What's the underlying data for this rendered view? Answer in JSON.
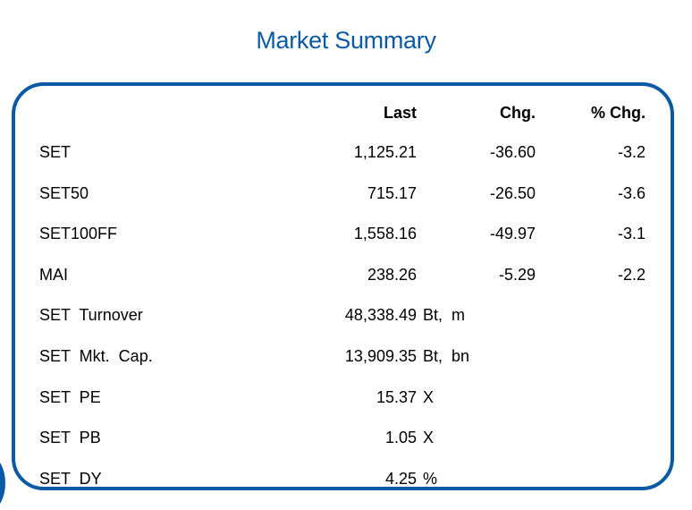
{
  "title": "Market Summary",
  "headers": {
    "last": "Last",
    "chg": "Chg.",
    "pct_chg": "% Chg."
  },
  "indices": [
    {
      "name": "SET",
      "last": "1,125.21",
      "chg": "-36.60",
      "pct": "-3.2"
    },
    {
      "name": "SET50",
      "last": "715.17",
      "chg": "-26.50",
      "pct": "-3.6"
    },
    {
      "name": "SET100FF",
      "last": "1,558.16",
      "chg": "-49.97",
      "pct": "-3.1"
    },
    {
      "name": "MAI",
      "last": "238.26",
      "chg": "-5.29",
      "pct": "-2.2"
    }
  ],
  "stats": [
    {
      "name": "SET  Turnover",
      "value": "48,338.49",
      "unit": "Bt,  m"
    },
    {
      "name": "SET  Mkt.  Cap.",
      "value": "13,909.35",
      "unit": "Bt,  bn"
    },
    {
      "name": "SET  PE",
      "value": "15.37",
      "unit": "X"
    },
    {
      "name": "SET  PB",
      "value": "1.05",
      "unit": "X"
    },
    {
      "name": "SET  DY",
      "value": "4.25",
      "unit": "%"
    }
  ],
  "colors": {
    "accent": "#0b5aa5"
  }
}
